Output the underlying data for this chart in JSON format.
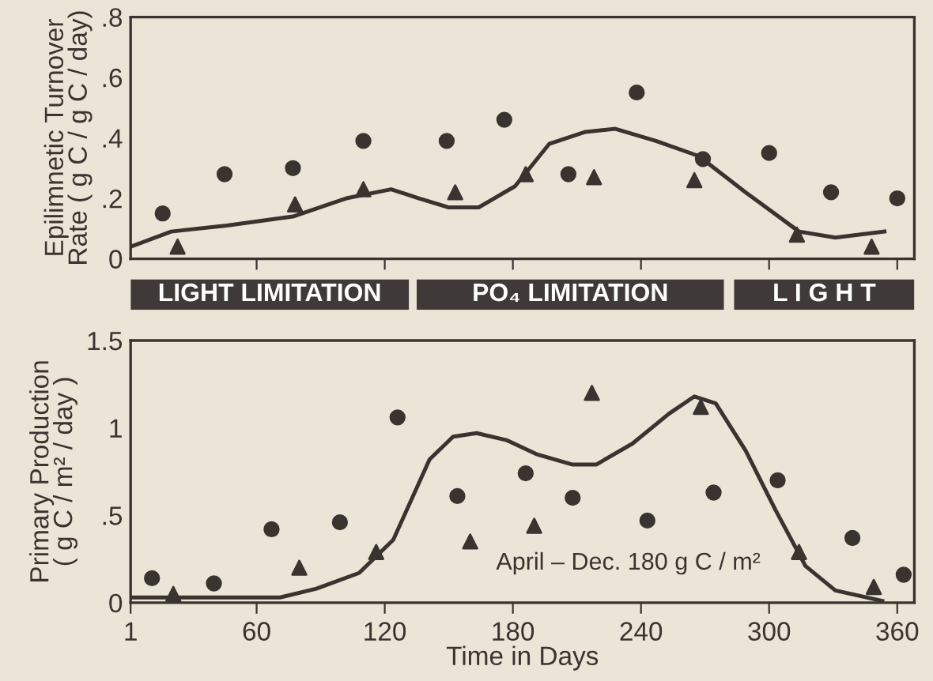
{
  "chart_data": [
    {
      "type": "scatter",
      "ylabel": "Epilimnetic Turnover\nRate ( g C / g C / day)",
      "xlim": [
        1,
        368
      ],
      "ylim": [
        0,
        0.8
      ],
      "xticks": [
        {
          "value": 60,
          "label": null
        },
        {
          "value": 120,
          "label": null
        },
        {
          "value": 180,
          "label": null
        },
        {
          "value": 240,
          "label": null
        },
        {
          "value": 300,
          "label": null
        },
        {
          "value": 360,
          "label": null
        }
      ],
      "yticks": [
        0,
        {
          "value": 0.2,
          "label": ".2"
        },
        {
          "value": 0.4,
          "label": ".4"
        },
        {
          "value": 0.6,
          "label": ".6"
        },
        {
          "value": 0.8,
          "label": ".8"
        }
      ],
      "tick_labels": "y",
      "series": [
        {
          "marker": "circle",
          "color": "#3a3431",
          "x": [
            16,
            45,
            77,
            110,
            149,
            176,
            206,
            238,
            269,
            300,
            329,
            360
          ],
          "values": [
            0.15,
            0.28,
            0.3,
            0.39,
            0.39,
            0.46,
            0.28,
            0.55,
            0.33,
            0.35,
            0.22,
            0.2
          ]
        },
        {
          "marker": "triangle",
          "color": "#3a3431",
          "x": [
            23,
            78,
            110,
            153,
            186,
            218,
            265,
            313,
            348
          ],
          "values": [
            0.04,
            0.18,
            0.23,
            0.22,
            0.28,
            0.27,
            0.26,
            0.08,
            0.04
          ]
        },
        {
          "type": "line",
          "color": "#3a3431",
          "x": [
            1,
            20,
            46,
            77,
            102,
            123,
            136,
            150,
            164,
            181,
            197,
            214,
            228,
            247,
            267,
            289,
            314,
            331,
            354
          ],
          "values": [
            0.04,
            0.09,
            0.11,
            0.14,
            0.2,
            0.23,
            0.2,
            0.17,
            0.17,
            0.24,
            0.38,
            0.42,
            0.43,
            0.39,
            0.34,
            0.22,
            0.09,
            0.07,
            0.09
          ]
        }
      ]
    },
    {
      "type": "other",
      "annotations": [
        "LIGHT LIMITATION",
        "PO₄ LIMITATION",
        "L I G H T"
      ]
    },
    {
      "type": "scatter",
      "xlabel": "Time in Days",
      "ylabel": "Primary Production\n( g C / m² / day )",
      "xlim": [
        1,
        368
      ],
      "ylim": [
        0,
        1.5
      ],
      "xticks": [
        1,
        60,
        120,
        180,
        240,
        300,
        360
      ],
      "yticks": [
        0,
        {
          "value": 0.5,
          "label": ".5"
        },
        1,
        1.5
      ],
      "annotations": [
        "April – Dec. 180 g C / m²"
      ],
      "series": [
        {
          "marker": "circle",
          "color": "#3a3431",
          "x": [
            11,
            40,
            67,
            99,
            126,
            154,
            186,
            208,
            243,
            274,
            304,
            339,
            363
          ],
          "values": [
            0.14,
            0.11,
            0.42,
            0.46,
            1.06,
            0.61,
            0.74,
            0.6,
            0.47,
            0.63,
            0.7,
            0.37,
            0.16
          ]
        },
        {
          "marker": "triangle",
          "color": "#3a3431",
          "x": [
            21,
            80,
            116,
            160,
            190,
            217,
            268,
            314,
            349
          ],
          "values": [
            0.05,
            0.2,
            0.29,
            0.35,
            0.44,
            1.2,
            1.12,
            0.29,
            0.09
          ]
        },
        {
          "type": "line",
          "color": "#3a3431",
          "x": [
            1,
            24,
            71,
            88,
            108,
            124,
            141,
            152,
            163,
            177,
            191,
            208,
            219,
            236,
            253,
            265,
            275,
            289,
            303,
            317,
            331,
            353
          ],
          "values": [
            0.03,
            0.03,
            0.03,
            0.08,
            0.17,
            0.36,
            0.82,
            0.95,
            0.97,
            0.93,
            0.85,
            0.79,
            0.79,
            0.91,
            1.08,
            1.18,
            1.14,
            0.87,
            0.53,
            0.21,
            0.07,
            0.01
          ]
        }
      ]
    }
  ]
}
